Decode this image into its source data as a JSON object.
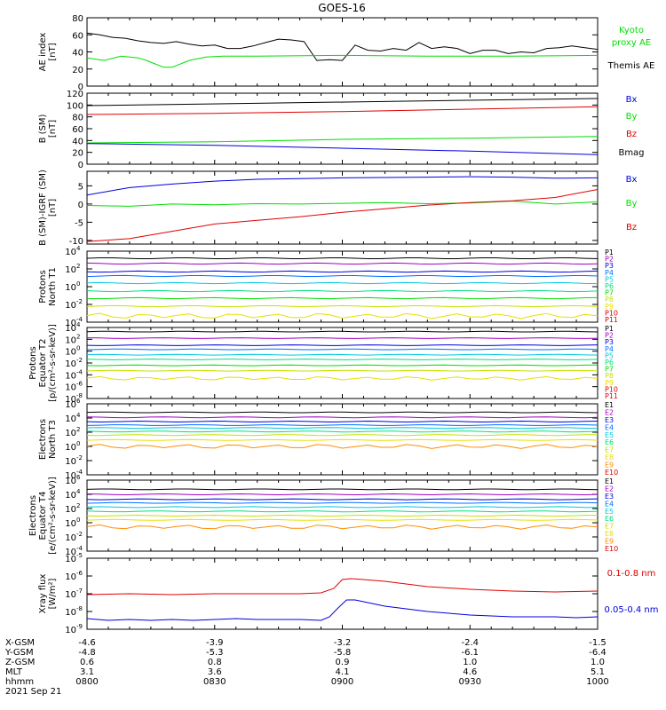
{
  "title": "GOES-16",
  "date_label": "2021 Sep 21",
  "colors": {
    "frame": "#000000",
    "red": "#e00000",
    "green": "#00dd00",
    "blue": "#0000dd",
    "yellow": "#e8e000",
    "orange": "#ff8c00",
    "cyan": "#00c8e0",
    "magenta": "#a000c0"
  },
  "x_axis": {
    "range": [
      "08:00",
      "10:00"
    ],
    "rows": [
      {
        "label": "X-GSM",
        "values": [
          "-4.6",
          "-3.9",
          "-3.2",
          "-2.4",
          "-1.5"
        ]
      },
      {
        "label": "Y-GSM",
        "values": [
          "-4.8",
          "-5.3",
          "-5.8",
          "-6.1",
          "-6.4"
        ]
      },
      {
        "label": "Z-GSM",
        "values": [
          "0.6",
          "0.8",
          "0.9",
          "1.0",
          "1.0"
        ]
      },
      {
        "label": "MLT",
        "values": [
          "3.1",
          "3.6",
          "4.1",
          "4.6",
          "5.1"
        ]
      },
      {
        "label": "hhmm",
        "values": [
          "0800",
          "0830",
          "0900",
          "0930",
          "1000"
        ]
      }
    ]
  },
  "chart_data": [
    {
      "type": "line",
      "id": "ae",
      "ylabel": [
        "AE index",
        "[nT]"
      ],
      "yscale": "linear",
      "ylim": [
        0,
        80
      ],
      "yticks": [
        "0",
        "20",
        "40",
        "60",
        "80"
      ],
      "legend": [
        {
          "text": [
            "Kyoto",
            "proxy AE"
          ],
          "color": "#00dd00"
        },
        {
          "text": [
            "Themis AE"
          ],
          "color": "#000000"
        }
      ],
      "series": [
        {
          "name": "Themis AE",
          "color": "#000000",
          "x": [
            0,
            3,
            6,
            9,
            12,
            15,
            18,
            21,
            24,
            27,
            30,
            33,
            36,
            39,
            42,
            45,
            48,
            51,
            54,
            57,
            60,
            63,
            66,
            69,
            72,
            75,
            78,
            81,
            84,
            87,
            90,
            93,
            96,
            99,
            102,
            105,
            108,
            111,
            114,
            117,
            120
          ],
          "values": [
            62,
            60,
            57,
            56,
            53,
            51,
            50,
            52,
            49,
            47,
            48,
            44,
            44,
            47,
            51,
            55,
            54,
            52,
            30,
            31,
            30,
            48,
            42,
            41,
            44,
            42,
            51,
            44,
            46,
            44,
            38,
            42,
            42,
            38,
            40,
            39,
            44,
            45,
            47,
            45,
            43
          ]
        },
        {
          "name": "Kyoto proxy AE",
          "color": "#00dd00",
          "x": [
            0,
            4,
            8,
            12,
            14,
            16,
            18,
            20,
            24,
            28,
            32,
            40,
            60,
            80,
            100,
            120
          ],
          "values": [
            33,
            30,
            35,
            33,
            30,
            26,
            22,
            22,
            30,
            34,
            35,
            35,
            36,
            35,
            35,
            36
          ]
        }
      ]
    },
    {
      "type": "line",
      "id": "bsm",
      "ylabel": [
        "B (SM)",
        "[nT]"
      ],
      "yscale": "linear",
      "ylim": [
        0,
        120
      ],
      "yticks": [
        "0",
        "20",
        "40",
        "60",
        "80",
        "100",
        "120"
      ],
      "legend": [
        {
          "text": [
            "Bx"
          ],
          "color": "#0000dd"
        },
        {
          "text": [
            "By"
          ],
          "color": "#00dd00"
        },
        {
          "text": [
            "Bz"
          ],
          "color": "#e00000"
        },
        {
          "text": [
            "Bmag"
          ],
          "color": "#000000"
        }
      ],
      "series": [
        {
          "name": "Bmag",
          "color": "#000000",
          "x": [
            0,
            120
          ],
          "values": [
            99,
            111
          ]
        },
        {
          "name": "Bz",
          "color": "#e00000",
          "x": [
            0,
            30,
            60,
            90,
            120
          ],
          "values": [
            84,
            86,
            89,
            93,
            97
          ]
        },
        {
          "name": "By",
          "color": "#00dd00",
          "x": [
            0,
            30,
            60,
            90,
            120
          ],
          "values": [
            36,
            38,
            42,
            44,
            47
          ]
        },
        {
          "name": "Bx",
          "color": "#0000dd",
          "x": [
            0,
            30,
            60,
            90,
            120
          ],
          "values": [
            35,
            32,
            27,
            22,
            16
          ]
        }
      ]
    },
    {
      "type": "line",
      "id": "bigrf",
      "ylabel": [
        "B (SM)-IGRF (SM)",
        "[nT]"
      ],
      "yscale": "linear",
      "ylim": [
        -11,
        9
      ],
      "yticks": [
        "-10",
        "-5",
        "0",
        "5"
      ],
      "ytickvals": [
        -10,
        -5,
        0,
        5
      ],
      "legend": [
        {
          "text": [
            "Bx"
          ],
          "color": "#0000dd"
        },
        {
          "text": [
            "By"
          ],
          "color": "#00dd00"
        },
        {
          "text": [
            "Bz"
          ],
          "color": "#e00000"
        }
      ],
      "series": [
        {
          "name": "Bx",
          "color": "#0000dd",
          "x": [
            0,
            10,
            20,
            30,
            40,
            50,
            60,
            70,
            80,
            90,
            100,
            110,
            120
          ],
          "values": [
            2.5,
            4.5,
            5.5,
            6.3,
            6.8,
            7.0,
            7.2,
            7.3,
            7.4,
            7.5,
            7.4,
            7.1,
            7.2
          ]
        },
        {
          "name": "By",
          "color": "#00dd00",
          "x": [
            0,
            10,
            20,
            30,
            40,
            50,
            60,
            70,
            80,
            90,
            100,
            110,
            120
          ],
          "values": [
            -0.4,
            -0.6,
            0.0,
            -0.2,
            0.1,
            0.0,
            0.2,
            0.4,
            0.1,
            0.3,
            0.8,
            0.0,
            0.6
          ]
        },
        {
          "name": "Bz",
          "color": "#e00000",
          "x": [
            0,
            10,
            20,
            30,
            40,
            50,
            60,
            70,
            80,
            90,
            100,
            110,
            120
          ],
          "values": [
            -10.3,
            -9.5,
            -7.5,
            -5.5,
            -4.5,
            -3.5,
            -2.3,
            -1.3,
            -0.3,
            0.4,
            0.9,
            1.8,
            4.0
          ]
        }
      ]
    },
    {
      "type": "line",
      "id": "pn",
      "ylabel": [
        "Protons",
        "North T1"
      ],
      "yscale": "log",
      "yexp": [
        -4,
        4
      ],
      "ytick_exps": [
        "-4",
        "-2",
        "0",
        "2",
        "4"
      ],
      "legend_small": [
        "P1",
        "P2",
        "P3",
        "P4",
        "P5",
        "P6",
        "P7",
        "P8",
        "P9",
        "P10",
        "P11"
      ],
      "series": [
        {
          "name": "P1",
          "color": "#000000",
          "logflux": 3.2
        },
        {
          "name": "P2",
          "color": "#a000c0",
          "logflux": 2.6
        },
        {
          "name": "P3",
          "color": "#0000dd",
          "logflux": 1.7
        },
        {
          "name": "P4",
          "color": "#0070ff",
          "logflux": 1.2
        },
        {
          "name": "P5",
          "color": "#00c8e0",
          "logflux": 0.4
        },
        {
          "name": "P6",
          "color": "#00e080",
          "logflux": -0.5
        },
        {
          "name": "P7",
          "color": "#00dd00",
          "logflux": -1.3
        },
        {
          "name": "P8",
          "color": "#c8e000",
          "logflux": -2.2
        },
        {
          "name": "P9",
          "color": "#e8e000",
          "logflux": -3.3
        }
      ]
    },
    {
      "type": "line",
      "id": "pe",
      "ylabel": [
        "Protons",
        "Equator T2",
        "[p/(cm²-s-sr-keV)]"
      ],
      "yscale": "log",
      "yexp": [
        -8,
        4
      ],
      "ytick_exps": [
        "-8",
        "-6",
        "-4",
        "-2",
        "0",
        "2",
        "4"
      ],
      "legend_small": [
        "P1",
        "P2",
        "P3",
        "P4",
        "P5",
        "P6",
        "P7",
        "P8",
        "P9",
        "P10",
        "P11"
      ],
      "series": [
        {
          "name": "P1",
          "color": "#000000",
          "logflux": 3.3
        },
        {
          "name": "P2",
          "color": "#a000c0",
          "logflux": 2.2
        },
        {
          "name": "P3",
          "color": "#0000dd",
          "logflux": 1.0
        },
        {
          "name": "P4",
          "color": "#0070ff",
          "logflux": 0.3
        },
        {
          "name": "P5",
          "color": "#00c8e0",
          "logflux": -0.6
        },
        {
          "name": "P6",
          "color": "#00e080",
          "logflux": -1.4
        },
        {
          "name": "P7",
          "color": "#00dd00",
          "logflux": -2.4
        },
        {
          "name": "P8",
          "color": "#c8e000",
          "logflux": -3.3
        },
        {
          "name": "P9",
          "color": "#e8e000",
          "logflux": -4.6
        }
      ]
    },
    {
      "type": "line",
      "id": "en",
      "ylabel": [
        "Electrons",
        "North T3"
      ],
      "yscale": "log",
      "yexp": [
        -4,
        6
      ],
      "ytick_exps": [
        "-4",
        "-2",
        "0",
        "2",
        "4",
        "6"
      ],
      "legend_small": [
        "E1",
        "E2",
        "E3",
        "E4",
        "E5",
        "E6",
        "E7",
        "E8",
        "E9",
        "E10"
      ],
      "series": [
        {
          "name": "E1",
          "color": "#000000",
          "logflux": 4.8
        },
        {
          "name": "E2",
          "color": "#a000c0",
          "logflux": 4.1
        },
        {
          "name": "E3",
          "color": "#0000dd",
          "logflux": 3.5
        },
        {
          "name": "E4",
          "color": "#0070ff",
          "logflux": 3.0
        },
        {
          "name": "E5",
          "color": "#00c8e0",
          "logflux": 2.6
        },
        {
          "name": "E6",
          "color": "#00e080",
          "logflux": 2.1
        },
        {
          "name": "E7",
          "color": "#c8e000",
          "logflux": 1.6
        },
        {
          "name": "E8",
          "color": "#e8e000",
          "logflux": 0.9
        },
        {
          "name": "E9",
          "color": "#ff8c00",
          "logflux": 0.0
        }
      ]
    },
    {
      "type": "line",
      "id": "ee",
      "ylabel": [
        "Electrons",
        "Equator T4",
        "[e/(cm²-s-sr-keV)]"
      ],
      "yscale": "log",
      "yexp": [
        -4,
        6
      ],
      "ytick_exps": [
        "-4",
        "-2",
        "0",
        "2",
        "4",
        "6"
      ],
      "legend_small": [
        "E1",
        "E2",
        "E3",
        "E4",
        "E5",
        "E6",
        "E7",
        "E8",
        "E9",
        "E10"
      ],
      "series": [
        {
          "name": "E1",
          "color": "#000000",
          "logflux": 4.7
        },
        {
          "name": "E2",
          "color": "#a000c0",
          "logflux": 4.0
        },
        {
          "name": "E3",
          "color": "#0000dd",
          "logflux": 3.3
        },
        {
          "name": "E4",
          "color": "#0070ff",
          "logflux": 2.8
        },
        {
          "name": "E5",
          "color": "#00c8e0",
          "logflux": 2.2
        },
        {
          "name": "E6",
          "color": "#00e080",
          "logflux": 1.6
        },
        {
          "name": "E7",
          "color": "#c8e000",
          "logflux": 1.0
        },
        {
          "name": "E8",
          "color": "#e8e000",
          "logflux": 0.4
        },
        {
          "name": "E9",
          "color": "#ff8c00",
          "logflux": -0.6
        }
      ]
    },
    {
      "type": "line",
      "id": "xray",
      "ylabel": [
        "Xray flux",
        "[W/m²]"
      ],
      "yscale": "log",
      "yexp": [
        -9,
        -5
      ],
      "ytick_exps": [
        "-9",
        "-8",
        "-7",
        "-6",
        "-5"
      ],
      "legend": [
        {
          "text": [
            "0.1-0.8 nm"
          ],
          "color": "#e00000"
        },
        {
          "text": [
            "0.05-0.4 nm"
          ],
          "color": "#0000dd"
        }
      ],
      "series": [
        {
          "name": "0.1-0.8 nm",
          "color": "#e00000",
          "x": [
            0,
            10,
            20,
            30,
            40,
            50,
            55,
            58,
            60,
            62,
            65,
            70,
            75,
            80,
            90,
            100,
            110,
            120
          ],
          "values": [
            -7.05,
            -7.0,
            -7.05,
            -7.0,
            -7.0,
            -7.0,
            -6.95,
            -6.7,
            -6.2,
            -6.15,
            -6.2,
            -6.3,
            -6.45,
            -6.6,
            -6.75,
            -6.85,
            -6.9,
            -6.85
          ]
        },
        {
          "name": "0.05-0.4 nm",
          "color": "#0000dd",
          "x": [
            0,
            5,
            10,
            15,
            20,
            25,
            30,
            35,
            40,
            45,
            50,
            55,
            57,
            59,
            61,
            63,
            66,
            70,
            75,
            80,
            90,
            100,
            110,
            115,
            120
          ],
          "values": [
            -8.4,
            -8.5,
            -8.45,
            -8.5,
            -8.45,
            -8.5,
            -8.45,
            -8.4,
            -8.45,
            -8.45,
            -8.45,
            -8.5,
            -8.3,
            -7.8,
            -7.35,
            -7.35,
            -7.5,
            -7.7,
            -7.85,
            -8.0,
            -8.2,
            -8.3,
            -8.3,
            -8.35,
            -8.3
          ]
        }
      ]
    }
  ]
}
